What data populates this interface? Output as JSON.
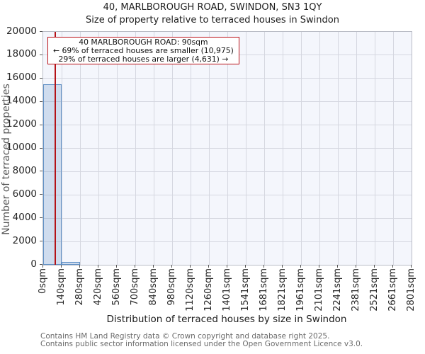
{
  "chart_data": {
    "type": "bar",
    "title": "40, MARLBOROUGH ROAD, SWINDON, SN3 1QY",
    "subtitle": "Size of property relative to terraced houses in Swindon",
    "xlabel": "Distribution of terraced houses by size in Swindon",
    "ylabel": "Number of terraced properties",
    "x_tick_labels": [
      "0sqm",
      "140sqm",
      "280sqm",
      "420sqm",
      "560sqm",
      "700sqm",
      "840sqm",
      "980sqm",
      "1120sqm",
      "1260sqm",
      "1401sqm",
      "1541sqm",
      "1681sqm",
      "1821sqm",
      "1961sqm",
      "2101sqm",
      "2241sqm",
      "2381sqm",
      "2521sqm",
      "2661sqm",
      "2801sqm"
    ],
    "y_ticks": [
      0,
      2000,
      4000,
      6000,
      8000,
      10000,
      12000,
      14000,
      16000,
      18000,
      20000
    ],
    "ylim": [
      0,
      20000
    ],
    "xlim_sqm": [
      0,
      2801
    ],
    "bin_width_sqm": 140.05,
    "bar_values": [
      15480,
      250,
      0,
      0,
      0,
      0,
      0,
      0,
      0,
      0,
      0,
      0,
      0,
      0,
      0,
      0,
      0,
      0,
      0,
      0
    ],
    "grid": true,
    "legend": null,
    "marker": {
      "x_sqm": 90,
      "label": "40 MARLBOROUGH ROAD: 90sqm"
    },
    "annotation": {
      "line1": "40 MARLBOROUGH ROAD: 90sqm",
      "line2": "← 69% of terraced houses are smaller (10,975)",
      "line3": "29% of terraced houses are larger (4,631) →"
    },
    "colors": {
      "bar_fill": "rgba(96,144,197,0.25)",
      "bar_edge": "#6090c5",
      "marker_line": "#b41217",
      "annotation_border": "#bb1016",
      "grid": "#d5d7e0",
      "plot_bg": "#f4f6fc",
      "plot_border": "#b9bcc6"
    }
  },
  "footer": {
    "line1": "Contains HM Land Registry data © Crown copyright and database right 2025.",
    "line2": "Contains public sector information licensed under the Open Government Licence v3.0."
  }
}
